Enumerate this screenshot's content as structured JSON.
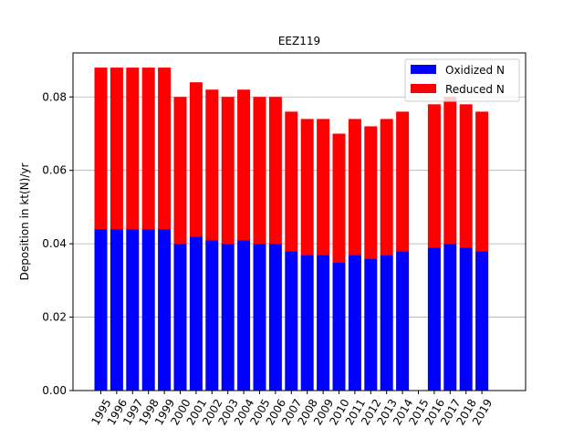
{
  "chart_data": {
    "type": "bar",
    "stacked": true,
    "title": "EEZ119",
    "xlabel": "",
    "ylabel": "Deposition in kt(N)/yr",
    "ylim": [
      0,
      0.092
    ],
    "yticks": [
      "0.00",
      "0.02",
      "0.04",
      "0.06",
      "0.08"
    ],
    "ytick_values": [
      0,
      0.02,
      0.04,
      0.06,
      0.08
    ],
    "grid": "y",
    "legend_position": "top-right",
    "categories": [
      "1995",
      "1996",
      "1997",
      "1998",
      "1999",
      "2000",
      "2001",
      "2002",
      "2003",
      "2004",
      "2005",
      "2006",
      "2007",
      "2008",
      "2009",
      "2010",
      "2011",
      "2012",
      "2013",
      "2014",
      "2015",
      "2016",
      "2017",
      "2018",
      "2019"
    ],
    "series": [
      {
        "name": "Oxidized N",
        "color": "#0000ff",
        "values": [
          0.044,
          0.044,
          0.044,
          0.044,
          0.044,
          0.04,
          0.042,
          0.041,
          0.04,
          0.041,
          0.04,
          0.04,
          0.038,
          0.037,
          0.037,
          0.035,
          0.037,
          0.036,
          0.037,
          0.038,
          null,
          0.039,
          0.04,
          0.039,
          0.038
        ]
      },
      {
        "name": "Reduced N",
        "color": "#ff0000",
        "values": [
          0.044,
          0.044,
          0.044,
          0.044,
          0.044,
          0.04,
          0.042,
          0.041,
          0.04,
          0.041,
          0.04,
          0.04,
          0.038,
          0.037,
          0.037,
          0.035,
          0.037,
          0.036,
          0.037,
          0.038,
          null,
          0.039,
          0.04,
          0.039,
          0.038
        ]
      }
    ]
  }
}
